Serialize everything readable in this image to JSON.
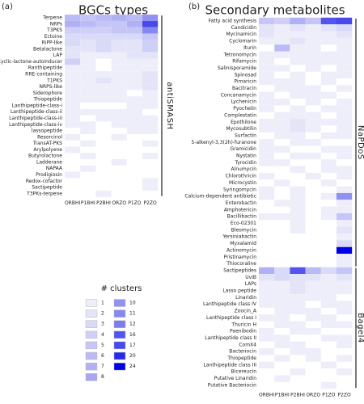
{
  "chart_data": [
    {
      "type": "heatmap",
      "panel": "(a)",
      "title": "BGCs types",
      "columns": [
        "ORBHI",
        "P1BHI",
        "P2BHI",
        "ORZO",
        "P1ZO",
        "P2ZO"
      ],
      "groups": [
        {
          "name": "antiSMASH",
          "rows": [
            "Terpene",
            "NRPs",
            "T3PKS",
            "Ectoine",
            "RiPP-like",
            "Betalactone",
            "LAP",
            "Cyclic-lactone-autoinducer",
            "Ranthipeptide",
            "RRE-containing",
            "T1PKS",
            "NRPS-like",
            "Siderophore",
            "Thiopeptide",
            "Lanthipeptide-class-i",
            "Lanthipeptide-class-ii",
            "Lanthipeptide-class-iii",
            "Lanthipeptide-class-iv",
            "lassopeptide",
            "Resorcinol",
            "TransAT-PKS",
            "Arylpolyene",
            "Butyrolactone",
            "Ladderane",
            "NAPAA",
            "Prodigiosin",
            "Redox-cofactor",
            "Sactipeptide",
            "T3PKs-terpene"
          ],
          "values": [
            [
              6,
              5,
              6,
              7,
              6,
              10
            ],
            [
              7,
              6,
              5,
              5,
              7,
              17
            ],
            [
              4,
              4,
              4,
              5,
              5,
              11
            ],
            [
              3,
              3,
              3,
              3,
              3,
              5
            ],
            [
              3,
              2,
              3,
              2,
              2,
              4
            ],
            [
              2,
              2,
              3,
              2,
              2,
              4
            ],
            [
              2,
              1,
              1,
              1,
              2,
              2
            ],
            [
              4,
              1,
              null,
              1,
              1,
              1
            ],
            [
              1,
              1,
              null,
              1,
              1,
              1
            ],
            [
              1,
              1,
              1,
              1,
              1,
              2
            ],
            [
              1,
              1,
              2,
              1,
              1,
              2
            ],
            [
              1,
              1,
              1,
              1,
              1,
              2
            ],
            [
              1,
              1,
              1,
              1,
              null,
              1
            ],
            [
              1,
              1,
              1,
              1,
              1,
              1
            ],
            [
              1,
              null,
              null,
              null,
              1,
              1
            ],
            [
              1,
              1,
              1,
              1,
              1,
              null
            ],
            [
              1,
              null,
              1,
              1,
              1,
              1
            ],
            [
              1,
              1,
              null,
              1,
              1,
              1
            ],
            [
              null,
              1,
              null,
              null,
              1,
              1
            ],
            [
              1,
              null,
              null,
              1,
              null,
              null
            ],
            [
              null,
              1,
              null,
              null,
              null,
              1
            ],
            [
              1,
              null,
              null,
              null,
              null,
              null
            ],
            [
              null,
              1,
              null,
              null,
              null,
              1
            ],
            [
              null,
              null,
              null,
              1,
              null,
              null
            ],
            [
              null,
              1,
              null,
              null,
              null,
              null
            ],
            [
              1,
              null,
              null,
              null,
              null,
              null
            ],
            [
              null,
              null,
              null,
              null,
              null,
              1
            ],
            [
              null,
              null,
              null,
              null,
              null,
              1
            ],
            [
              null,
              null,
              1,
              null,
              null,
              null
            ]
          ]
        }
      ]
    },
    {
      "type": "heatmap",
      "panel": "(b)",
      "title": "Secondary metabolites",
      "columns": [
        "ORBHI",
        "P1BHI",
        "P2BHI",
        "ORZO",
        "P1ZO",
        "P2ZO"
      ],
      "groups": [
        {
          "name": "NaPDoS",
          "rows": [
            "Fatty acid synthesis",
            "Candicidin",
            "Mycinamicin",
            "Cyclomarin",
            "Iturin",
            "Tetronomycin",
            "Rifamycin",
            "Salinisporamide",
            "Spinosad",
            "Pimaricin",
            "Bacitracin",
            "Concanamycin",
            "Lychenicin",
            "Pyochelin",
            "Complestatin",
            "Epothilone",
            "Mycosubtilin",
            "Surfactin",
            "5-alkenyl-3,3(2h)-furanone",
            "Gramicidin",
            "Nystatin",
            "Tyrocidin",
            "Alnumycin",
            "Chlorothricin",
            "Microcystin",
            "Syringomycin",
            "Calcium-dependent antibiotic",
            "Enterobactin",
            "Amphotericin",
            "Bacillibactin",
            "Eco-02301",
            "Bleomycin",
            "Yersiniabactin",
            "Myxalamid",
            "Actinomycin",
            "Pristinamycin",
            "Thiocoraline"
          ],
          "values": [
            [
              5,
              4,
              7,
              5,
              16,
              17
            ],
            [
              2,
              1,
              2,
              1,
              2,
              3
            ],
            [
              2,
              1,
              1,
              1,
              1,
              2
            ],
            [
              1,
              1,
              2,
              1,
              1,
              1
            ],
            [
              null,
              6,
              1,
              1,
              null,
              1
            ],
            [
              1,
              1,
              1,
              1,
              1,
              1
            ],
            [
              1,
              null,
              1,
              1,
              1,
              1
            ],
            [
              1,
              1,
              null,
              1,
              null,
              1
            ],
            [
              1,
              null,
              1,
              null,
              1,
              1
            ],
            [
              1,
              1,
              1,
              null,
              1,
              null
            ],
            [
              null,
              1,
              1,
              1,
              null,
              1
            ],
            [
              1,
              null,
              1,
              1,
              1,
              null
            ],
            [
              1,
              1,
              null,
              1,
              null,
              1
            ],
            [
              1,
              null,
              1,
              null,
              1,
              1
            ],
            [
              null,
              1,
              1,
              1,
              null,
              1
            ],
            [
              1,
              1,
              2,
              1,
              1,
              1
            ],
            [
              1,
              1,
              2,
              1,
              null,
              1
            ],
            [
              null,
              1,
              1,
              null,
              1,
              1
            ],
            [
              1,
              null,
              1,
              1,
              null,
              null
            ],
            [
              1,
              1,
              null,
              null,
              1,
              1
            ],
            [
              1,
              null,
              1,
              1,
              null,
              1
            ],
            [
              1,
              1,
              null,
              null,
              1,
              null
            ],
            [
              null,
              null,
              1,
              null,
              1,
              1
            ],
            [
              1,
              null,
              null,
              1,
              null,
              1
            ],
            [
              null,
              1,
              null,
              null,
              1,
              null
            ],
            [
              1,
              null,
              1,
              null,
              null,
              1
            ],
            [
              1,
              null,
              1,
              null,
              1,
              10
            ],
            [
              null,
              1,
              1,
              null,
              null,
              1
            ],
            [
              null,
              null,
              1,
              null,
              1,
              1
            ],
            [
              1,
              1,
              1,
              null,
              1,
              5
            ],
            [
              null,
              null,
              1,
              null,
              null,
              1
            ],
            [
              null,
              null,
              1,
              null,
              null,
              2
            ],
            [
              null,
              null,
              null,
              null,
              null,
              1
            ],
            [
              null,
              null,
              null,
              null,
              null,
              3
            ],
            [
              null,
              null,
              null,
              null,
              null,
              24
            ],
            [
              null,
              null,
              null,
              null,
              null,
              1
            ],
            [
              null,
              null,
              null,
              null,
              null,
              1
            ]
          ]
        },
        {
          "name": "Bagel4",
          "rows": [
            "Sactipeptides",
            "UviB",
            "LAPs",
            "Lasso peptide",
            "Linaridin",
            "Lanthipeptide class IV",
            "Zoocin_A",
            "Lanthipeptide class I",
            "Thuricin H",
            "Paenibodin",
            "Lanthipeptide class II",
            "ComX4",
            "Bacteriocin",
            "Thiopeptide",
            "Lanthipeptide class III",
            "Bicereucin",
            "Putative Linaridin",
            "Putative Bacteriocin"
          ],
          "values": [
            [
              7,
              3,
              16,
              6,
              3,
              5
            ],
            [
              2,
              3,
              2,
              2,
              1,
              2
            ],
            [
              1,
              1,
              2,
              1,
              1,
              1
            ],
            [
              1,
              1,
              2,
              1,
              1,
              1
            ],
            [
              1,
              1,
              1,
              1,
              1,
              null
            ],
            [
              1,
              1,
              1,
              null,
              1,
              1
            ],
            [
              null,
              1,
              1,
              1,
              null,
              1
            ],
            [
              1,
              1,
              null,
              1,
              1,
              null
            ],
            [
              null,
              1,
              1,
              null,
              1,
              1
            ],
            [
              1,
              null,
              1,
              1,
              null,
              null
            ],
            [
              1,
              1,
              null,
              null,
              1,
              1
            ],
            [
              null,
              1,
              1,
              null,
              null,
              1
            ],
            [
              1,
              null,
              1,
              1,
              null,
              null
            ],
            [
              null,
              1,
              null,
              1,
              null,
              1
            ],
            [
              1,
              null,
              null,
              null,
              1,
              null
            ],
            [
              null,
              null,
              1,
              null,
              null,
              1
            ],
            [
              null,
              1,
              null,
              null,
              null,
              null
            ],
            [
              null,
              null,
              null,
              null,
              1,
              null
            ]
          ]
        }
      ]
    }
  ],
  "legend": {
    "title": "# clusters",
    "levels": [
      1,
      2,
      3,
      4,
      5,
      6,
      7,
      8,
      10,
      11,
      12,
      16,
      17,
      20,
      24
    ],
    "color_low": "#eeeefa",
    "color_high": "#0000e6"
  }
}
